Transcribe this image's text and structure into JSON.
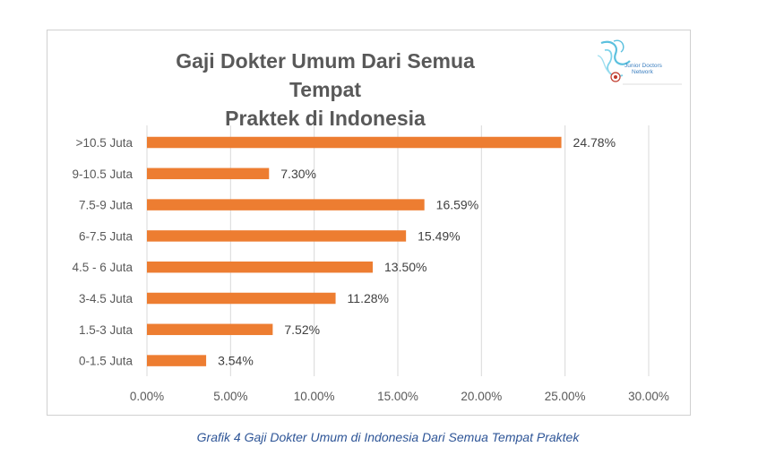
{
  "chart_data": {
    "type": "bar",
    "orientation": "horizontal",
    "title": "Gaji Dokter Umum Dari Semua Tempat Praktek di Indonesia",
    "title_lines": [
      "Gaji Dokter Umum Dari Semua Tempat",
      "Praktek di Indonesia"
    ],
    "categories": [
      ">10.5 Juta",
      "9-10.5 Juta",
      "7.5-9 Juta",
      "6-7.5 Juta",
      "4.5 - 6 Juta",
      "3-4.5 Juta",
      "1.5-3 Juta",
      "0-1.5 Juta"
    ],
    "values": [
      24.78,
      7.3,
      16.59,
      15.49,
      13.5,
      11.28,
      7.52,
      3.54
    ],
    "data_labels": [
      "24.78%",
      "7.30%",
      "16.59%",
      "15.49%",
      "13.50%",
      "11.28%",
      "7.52%",
      "3.54%"
    ],
    "xlim": [
      0,
      30
    ],
    "x_ticks": [
      0,
      5,
      10,
      15,
      20,
      25,
      30
    ],
    "x_tick_labels": [
      "0.00%",
      "5.00%",
      "10.00%",
      "15.00%",
      "20.00%",
      "25.00%",
      "30.00%"
    ],
    "xlabel": "",
    "ylabel": "",
    "grid": "vertical",
    "legend": "none",
    "bar_color": "#ed7d31"
  },
  "logo": {
    "text_line1": "Junior Doctors",
    "text_line2": "Network",
    "color": "#5bc0de"
  },
  "caption": "Grafik 4 Gaji Dokter Umum di Indonesia Dari Semua Tempat Praktek"
}
